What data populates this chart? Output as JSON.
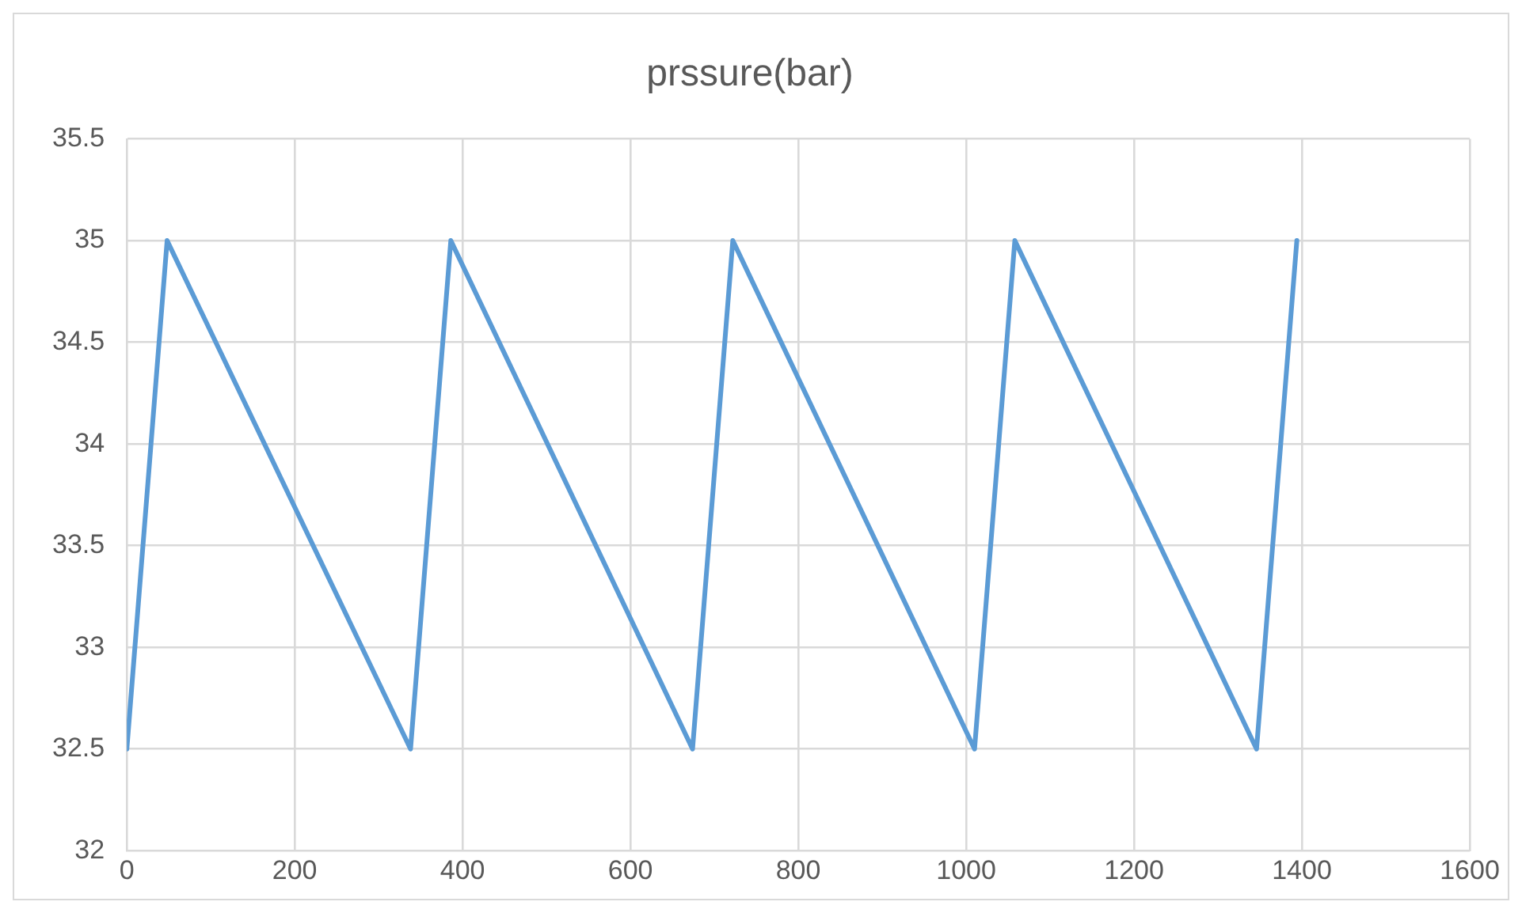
{
  "chart_data": {
    "type": "line",
    "title": "prssure(bar)",
    "x": [
      0,
      48,
      338,
      386,
      674,
      722,
      1010,
      1058,
      1346,
      1394
    ],
    "series": [
      {
        "color": "#5b9bd5",
        "values": [
          32.5,
          35,
          32.5,
          35,
          32.5,
          35,
          32.5,
          35,
          32.5,
          35
        ]
      }
    ],
    "xlim": [
      0,
      1600
    ],
    "xticks": [
      0,
      200,
      400,
      600,
      800,
      1000,
      1200,
      1400,
      1600
    ],
    "ylim": [
      32,
      35.5
    ],
    "yticks": [
      32,
      32.5,
      33,
      33.5,
      34,
      34.5,
      35,
      35.5
    ],
    "grid": true,
    "legend": false,
    "marker": "none",
    "line_style": "solid"
  }
}
